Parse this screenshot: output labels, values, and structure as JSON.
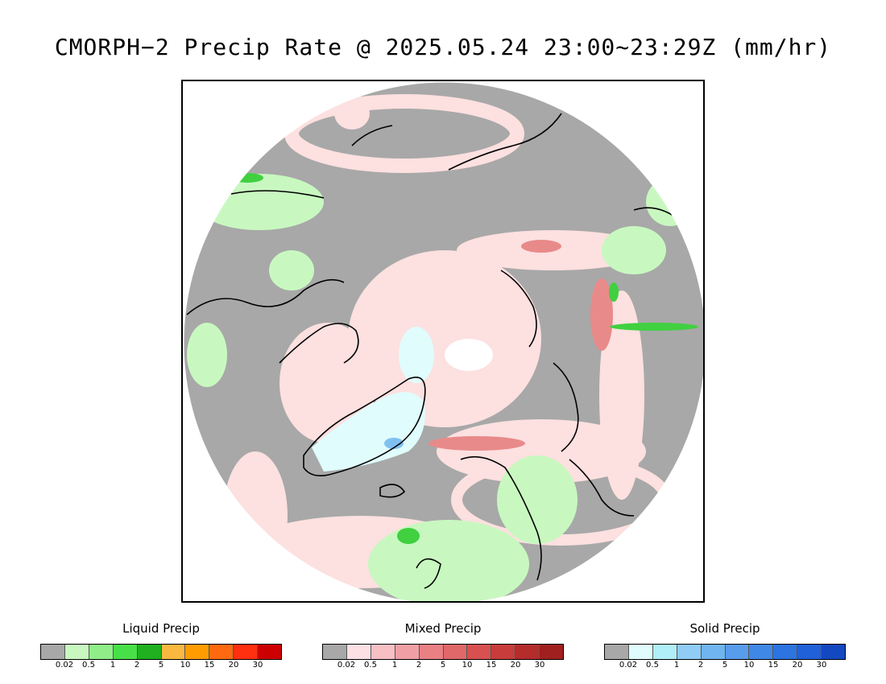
{
  "title": "CMORPH−2 Precip Rate @ 2025.05.24 23:00~23:29Z (mm/hr)",
  "map": {
    "projection": "north-polar-stereographic",
    "colors": {
      "no_precip": "#a8a8a8",
      "ocean_background": "#ffffff",
      "coastline": "#000000",
      "mixed_light": "#fde0e0",
      "mixed_moderate": "#e88a8a",
      "liquid_light": "#c8f8c0",
      "liquid_moderate": "#40d040",
      "solid_light": "#e0fcfc",
      "solid_moderate": "#80c0f0"
    }
  },
  "legends": [
    {
      "title": "Liquid Precip",
      "colors": [
        "#a8a8a8",
        "#c8f8c0",
        "#90ee88",
        "#48e048",
        "#20b020",
        "#fbb840",
        "#ff9c00",
        "#ff6a10",
        "#ff3010",
        "#cc0000"
      ],
      "ticks": [
        "0.02",
        "0.5",
        "1",
        "2",
        "5",
        "10",
        "15",
        "20",
        "30"
      ]
    },
    {
      "title": "Mixed Precip",
      "colors": [
        "#a8a8a8",
        "#fde0e4",
        "#f8c0c4",
        "#f0a0a4",
        "#e88084",
        "#e06868",
        "#d85050",
        "#c83c3c",
        "#b42c2c",
        "#a02020"
      ],
      "ticks": [
        "0.02",
        "0.5",
        "1",
        "2",
        "5",
        "10",
        "15",
        "20",
        "30"
      ]
    },
    {
      "title": "Solid Precip",
      "colors": [
        "#a8a8a8",
        "#e0fcfc",
        "#b0eef8",
        "#90ccf4",
        "#70b4f0",
        "#589cec",
        "#4088e8",
        "#2c74e0",
        "#2060d8",
        "#1448c0"
      ],
      "ticks": [
        "0.02",
        "0.5",
        "1",
        "2",
        "5",
        "10",
        "15",
        "20",
        "30"
      ]
    }
  ]
}
